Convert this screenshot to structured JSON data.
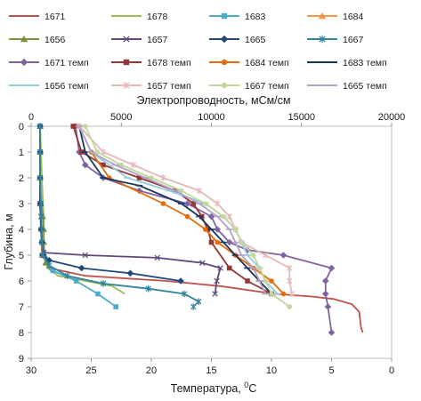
{
  "chart_data": {
    "type": "line",
    "title": "",
    "x_top": {
      "label": "Электропроводность, мСм/см",
      "range": [
        0,
        20000
      ],
      "ticks": [
        0,
        5000,
        10000,
        15000,
        20000
      ],
      "tick_labels": [
        "0",
        "5000",
        "10000",
        "15000",
        "20000"
      ]
    },
    "x_bottom": {
      "label_prefix": "Температура, ",
      "label_sup": "0",
      "label_suffix": "С",
      "range": [
        30,
        0
      ],
      "ticks": [
        30,
        25,
        20,
        15,
        10,
        5,
        0
      ],
      "tick_labels": [
        "30",
        "25",
        "20",
        "15",
        "10",
        "5",
        "0"
      ]
    },
    "y": {
      "label": "Глубина, м",
      "range": [
        0,
        9
      ],
      "inverted": true,
      "ticks": [
        0,
        1,
        2,
        3,
        4,
        5,
        6,
        7,
        8,
        9
      ],
      "tick_labels": [
        "0",
        "1",
        "2",
        "3",
        "4",
        "5",
        "6",
        "7",
        "8",
        "9"
      ]
    },
    "grid": false,
    "legend_position": "top",
    "series": [
      {
        "name": "1671",
        "axis": "top",
        "color": "#c0504d",
        "marker": "none",
        "points": [
          [
            500,
            0
          ],
          [
            500,
            1
          ],
          [
            500,
            2
          ],
          [
            500,
            3
          ],
          [
            550,
            4
          ],
          [
            650,
            5
          ],
          [
            1000,
            5.5
          ],
          [
            3000,
            5.8
          ],
          [
            7500,
            6.0
          ],
          [
            10500,
            6.2
          ],
          [
            13500,
            6.5
          ],
          [
            15500,
            6.6
          ],
          [
            16800,
            6.7
          ],
          [
            17800,
            6.9
          ],
          [
            18200,
            7.2
          ],
          [
            18300,
            7.8
          ],
          [
            18400,
            8.0
          ]
        ]
      },
      {
        "name": "1678",
        "axis": "top",
        "color": "#9bbb59",
        "marker": "none",
        "points": [
          [
            500,
            0
          ],
          [
            550,
            1
          ],
          [
            600,
            2
          ],
          [
            650,
            3
          ],
          [
            700,
            3.5
          ],
          [
            700,
            4.5
          ],
          [
            700,
            5.0
          ],
          [
            900,
            5.5
          ],
          [
            1500,
            5.8
          ],
          [
            3000,
            6.0
          ],
          [
            4500,
            6.2
          ],
          [
            5200,
            6.5
          ]
        ]
      },
      {
        "name": "1683",
        "axis": "top",
        "color": "#4bacc6",
        "marker": "square",
        "points": [
          [
            500,
            0
          ],
          [
            500,
            1
          ],
          [
            500,
            2
          ],
          [
            500,
            3
          ],
          [
            550,
            4
          ],
          [
            600,
            5.0
          ],
          [
            1200,
            5.6
          ],
          [
            2500,
            6.0
          ],
          [
            3700,
            6.5
          ],
          [
            4700,
            7.0
          ]
        ]
      },
      {
        "name": "1684",
        "axis": "top",
        "color": "#f79646",
        "marker": "triangle",
        "points": [
          [
            500,
            0
          ],
          [
            500,
            1
          ],
          [
            500,
            2
          ],
          [
            500,
            3
          ],
          [
            550,
            4
          ],
          [
            600,
            5.0
          ]
        ]
      },
      {
        "name": "1656",
        "axis": "top",
        "color": "#77933c",
        "marker": "triangle",
        "points": [
          [
            500,
            0
          ],
          [
            500,
            1
          ],
          [
            500,
            2
          ],
          [
            550,
            3
          ],
          [
            650,
            3.5
          ],
          [
            700,
            4.0
          ],
          [
            700,
            4.5
          ],
          [
            750,
            5.0
          ],
          [
            800,
            5.3
          ]
        ]
      },
      {
        "name": "1657",
        "axis": "top",
        "color": "#604a7b",
        "marker": "x",
        "points": [
          [
            500,
            0
          ],
          [
            500,
            1
          ],
          [
            500,
            2
          ],
          [
            500,
            3
          ],
          [
            550,
            3.5
          ],
          [
            600,
            4.5
          ],
          [
            700,
            4.9
          ],
          [
            3000,
            5.0
          ],
          [
            7000,
            5.1
          ],
          [
            9500,
            5.3
          ],
          [
            10500,
            5.5
          ],
          [
            10300,
            6.0
          ],
          [
            10200,
            6.5
          ]
        ]
      },
      {
        "name": "1665",
        "axis": "top",
        "color": "#1f497d",
        "marker": "diamond",
        "points": [
          [
            500,
            0
          ],
          [
            500,
            1
          ],
          [
            500,
            2
          ],
          [
            500,
            3
          ],
          [
            550,
            4.0
          ],
          [
            600,
            4.5
          ],
          [
            650,
            5.0
          ],
          [
            1000,
            5.2
          ],
          [
            2800,
            5.5
          ],
          [
            5500,
            5.7
          ],
          [
            8300,
            6.0
          ]
        ]
      },
      {
        "name": "1667",
        "axis": "top",
        "color": "#31849b",
        "marker": "asterisk",
        "points": [
          [
            500,
            0
          ],
          [
            500,
            1
          ],
          [
            500,
            2
          ],
          [
            550,
            3
          ],
          [
            550,
            3.5
          ],
          [
            600,
            4.0
          ],
          [
            600,
            4.5
          ],
          [
            650,
            5.0
          ],
          [
            1000,
            5.4
          ],
          [
            2000,
            5.8
          ],
          [
            4000,
            6.1
          ],
          [
            6500,
            6.3
          ],
          [
            8500,
            6.5
          ],
          [
            9300,
            6.8
          ],
          [
            9000,
            7.0
          ]
        ]
      },
      {
        "name": "1671 темп",
        "axis": "bottom",
        "color": "#8064a2",
        "marker": "diamond",
        "points": [
          [
            26.3,
            0
          ],
          [
            26.0,
            1
          ],
          [
            25.5,
            1.5
          ],
          [
            24.0,
            2
          ],
          [
            21.0,
            2.5
          ],
          [
            17.0,
            3
          ],
          [
            15.0,
            3.5
          ],
          [
            14.5,
            4
          ],
          [
            13.5,
            4.5
          ],
          [
            12.0,
            4.8
          ],
          [
            9.0,
            5.0
          ],
          [
            5.0,
            5.5
          ],
          [
            5.5,
            6.0
          ],
          [
            5.5,
            6.5
          ],
          [
            5.3,
            7.0
          ],
          [
            5.0,
            8.0
          ]
        ]
      },
      {
        "name": "1678 темп",
        "axis": "bottom",
        "color": "#953735",
        "marker": "square",
        "points": [
          [
            26.5,
            0
          ],
          [
            25.8,
            1
          ],
          [
            24.0,
            1.5
          ],
          [
            21.0,
            2
          ],
          [
            18.0,
            2.5
          ],
          [
            16.5,
            3
          ],
          [
            15.8,
            3.5
          ],
          [
            15.3,
            4
          ],
          [
            15.0,
            4.5
          ],
          [
            13.5,
            5.5
          ],
          [
            12.0,
            6.0
          ],
          [
            10.0,
            6.5
          ]
        ]
      },
      {
        "name": "1684 темп",
        "axis": "bottom",
        "color": "#e46c0a",
        "marker": "circle",
        "points": [
          [
            26.0,
            0
          ],
          [
            25.0,
            1
          ],
          [
            23.5,
            2
          ],
          [
            19.0,
            3
          ],
          [
            17.0,
            3.5
          ],
          [
            15.5,
            4
          ],
          [
            14.5,
            4.5
          ],
          [
            13.0,
            5.0
          ],
          [
            11.5,
            5.5
          ],
          [
            10.0,
            6.0
          ],
          [
            9.0,
            6.5
          ]
        ]
      },
      {
        "name": "1683 темп",
        "axis": "bottom",
        "color": "#17375e",
        "marker": "dash",
        "points": [
          [
            26.0,
            0
          ],
          [
            25.5,
            1
          ],
          [
            24.0,
            2
          ],
          [
            21.0,
            2.3
          ],
          [
            17.5,
            3
          ],
          [
            16.0,
            3.5
          ],
          [
            15.0,
            4
          ],
          [
            14.0,
            4.5
          ],
          [
            13.0,
            5.0
          ],
          [
            12.0,
            5.5
          ],
          [
            11.0,
            6.0
          ],
          [
            10.0,
            6.5
          ]
        ]
      },
      {
        "name": "1656 темп",
        "axis": "bottom",
        "color": "#93cddd",
        "marker": "dash",
        "points": [
          [
            26.0,
            0
          ],
          [
            25.0,
            1
          ],
          [
            22.0,
            2
          ],
          [
            18.5,
            2.5
          ],
          [
            15.5,
            3
          ],
          [
            14.0,
            3.5
          ],
          [
            13.0,
            4
          ],
          [
            12.5,
            4.5
          ],
          [
            12.0,
            5.0
          ],
          [
            11.0,
            5.5
          ],
          [
            10.5,
            6.0
          ],
          [
            9.5,
            6.5
          ]
        ]
      },
      {
        "name": "1657 темп",
        "axis": "bottom",
        "color": "#e6b9b8",
        "marker": "asterisk",
        "points": [
          [
            26.0,
            0
          ],
          [
            24.0,
            1
          ],
          [
            21.5,
            1.5
          ],
          [
            19.0,
            2
          ],
          [
            16.0,
            2.5
          ],
          [
            14.5,
            3
          ],
          [
            13.5,
            3.5
          ],
          [
            13.0,
            4
          ],
          [
            12.5,
            4.5
          ],
          [
            10.5,
            5.0
          ],
          [
            8.5,
            5.5
          ],
          [
            8.5,
            6.0
          ],
          [
            8.3,
            6.5
          ]
        ]
      },
      {
        "name": "1667 темп",
        "axis": "bottom",
        "color": "#c3d69b",
        "marker": "circle",
        "points": [
          [
            25.5,
            0
          ],
          [
            24.5,
            1
          ],
          [
            22.5,
            1.5
          ],
          [
            20.0,
            2
          ],
          [
            17.5,
            2.5
          ],
          [
            15.5,
            3
          ],
          [
            14.0,
            3.5
          ],
          [
            13.0,
            4
          ],
          [
            12.5,
            4.5
          ],
          [
            11.5,
            5.0
          ],
          [
            11.0,
            5.5
          ],
          [
            10.5,
            6.0
          ],
          [
            10.0,
            6.5
          ],
          [
            8.5,
            7.0
          ]
        ]
      },
      {
        "name": "1665 темп",
        "axis": "bottom",
        "color": "#b3a2c7",
        "marker": "dash",
        "points": [
          [
            26.0,
            0
          ],
          [
            25.0,
            1
          ],
          [
            23.0,
            1.5
          ],
          [
            20.5,
            2
          ],
          [
            18.0,
            2.5
          ],
          [
            16.0,
            3
          ],
          [
            14.5,
            3.5
          ],
          [
            13.5,
            4
          ],
          [
            13.0,
            4.5
          ],
          [
            12.5,
            5.0
          ],
          [
            11.5,
            5.5
          ],
          [
            11.0,
            6.0
          ],
          [
            10.5,
            6.5
          ]
        ]
      }
    ]
  }
}
